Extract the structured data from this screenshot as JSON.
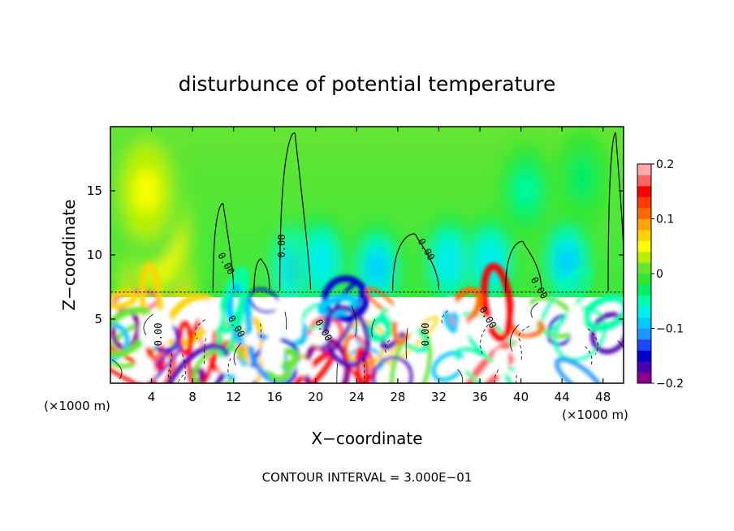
{
  "chart_data": {
    "type": "heatmap",
    "title": "disturbunce of potential temperature",
    "xlabel": "X−coordinate",
    "ylabel": "Z−coordinate",
    "x_unit_left": "(×1000 m)",
    "x_unit_right": "(×1000 m)",
    "footer": "CONTOUR INTERVAL = 3.000E−01",
    "xlim": [
      0,
      50
    ],
    "ylim": [
      0,
      20
    ],
    "x_ticks": [
      4,
      8,
      12,
      16,
      20,
      24,
      28,
      32,
      36,
      40,
      44,
      48
    ],
    "y_ticks": [
      5,
      10,
      15
    ],
    "colorbar": {
      "vmin": -0.2,
      "vmax": 0.2,
      "tick_values": [
        0.2,
        0.1,
        0,
        -0.1,
        -0.2
      ],
      "tick_labels": [
        "0.2",
        "0.1",
        "0",
        "−0.1",
        "−0.2"
      ],
      "colors": [
        "#8b008b",
        "#4b00b4",
        "#0000cd",
        "#1e46ff",
        "#1e96ff",
        "#00c8ff",
        "#00eeee",
        "#00ffaa",
        "#00ee66",
        "#32e632",
        "#64e632",
        "#b4f000",
        "#ffff00",
        "#ffd200",
        "#ffa500",
        "#ff6a00",
        "#ff3c00",
        "#ff0000",
        "#ff6464",
        "#ffaaaa"
      ]
    },
    "contour_labels": [
      {
        "text": "0.00",
        "x": 11,
        "z": 9.2
      },
      {
        "text": "0.00",
        "x": 17,
        "z": 10.7
      },
      {
        "text": "0.00",
        "x": 30.5,
        "z": 10.3
      },
      {
        "text": "0.00",
        "x": 41.5,
        "z": 7.3
      },
      {
        "text": "0.00",
        "x": 5,
        "z": 3.8
      },
      {
        "text": "0.00",
        "x": 12,
        "z": 4.3
      },
      {
        "text": "0.00",
        "x": 20.5,
        "z": 4.0
      },
      {
        "text": "0.00",
        "x": 31,
        "z": 3.8
      },
      {
        "text": "0.00",
        "x": 36.5,
        "z": 5.0
      }
    ],
    "regions": [
      {
        "name": "upper-layer",
        "z_range": [
          7.1,
          20
        ],
        "background": 0.0
      },
      {
        "name": "lower-turbulent-layer",
        "z_range": [
          0,
          7.1
        ]
      }
    ],
    "features": [
      {
        "kind": "warm",
        "x": 4.5,
        "z": 8.5,
        "value": 0.15
      },
      {
        "kind": "warm",
        "x": 4.5,
        "z": 12,
        "value": 0.09
      },
      {
        "kind": "warm",
        "x": 3.5,
        "z": 15,
        "value": 0.04
      },
      {
        "kind": "cool",
        "x": 18,
        "z": 9,
        "value": -0.1
      },
      {
        "kind": "cool",
        "x": 20.5,
        "z": 9.5,
        "value": -0.08
      },
      {
        "kind": "cool",
        "x": 26,
        "z": 9,
        "value": -0.09
      },
      {
        "kind": "cool",
        "x": 33,
        "z": 9.5,
        "value": -0.08
      },
      {
        "kind": "cool",
        "x": 37,
        "z": 9.5,
        "value": -0.08
      },
      {
        "kind": "cool",
        "x": 40.5,
        "z": 15,
        "value": -0.04
      },
      {
        "kind": "cool",
        "x": 44.5,
        "z": 9.5,
        "value": -0.09
      },
      {
        "kind": "cool",
        "x": 46,
        "z": 16,
        "value": -0.03
      }
    ]
  }
}
